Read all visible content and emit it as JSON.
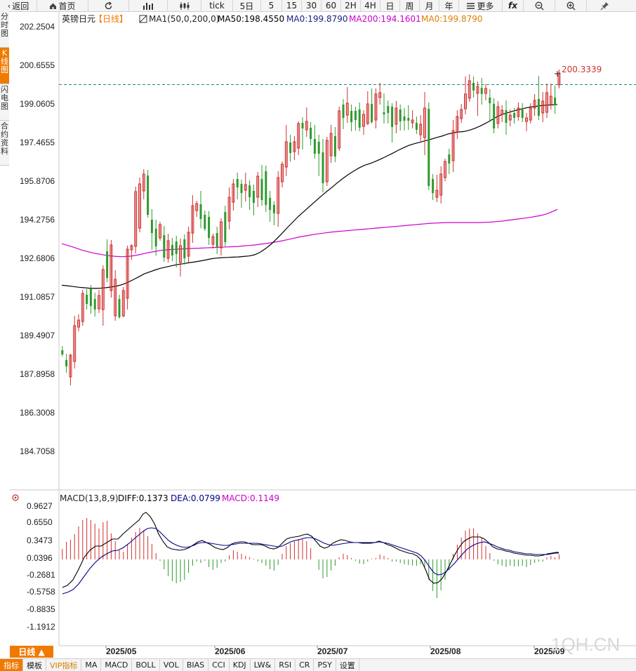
{
  "toolbar": {
    "back_label": "返回",
    "home_label": "首页",
    "tick_label": "tick",
    "day5_label": "5日",
    "m5_label": "5",
    "m15_label": "15",
    "m30_label": "30",
    "m60_label": "60",
    "h2_label": "2H",
    "h4_label": "4H",
    "day_label": "日",
    "week_label": "周",
    "month_label": "月",
    "year_label": "年",
    "more_label": "更多",
    "fx_label": "fx"
  },
  "side_tabs": [
    "分时图",
    "K线图",
    "闪电图",
    "合约资料"
  ],
  "header": {
    "name": "英镑日元",
    "period": "【日线】",
    "ma1": "MA1(50,0,200,0)",
    "ma50": "MA50:198.4550",
    "ma0": "MA0:199.8790",
    "ma200": "MA200:194.1601",
    "ma0b": "MA0:199.8790"
  },
  "price_axis": [
    "202.2504",
    "200.6555",
    "199.0605",
    "197.4655",
    "195.8706",
    "194.2756",
    "192.6806",
    "191.0857",
    "189.4907",
    "187.8958",
    "186.3008",
    "184.7058"
  ],
  "last_price": "200.3339",
  "macd": {
    "title": "MACD(13,8,9)",
    "diff": "DIFF:0.1373",
    "dea": "DEA:0.0799",
    "macd": "MACD:0.1149",
    "axis": [
      "0.9627",
      "0.6550",
      "0.3473",
      "0.0396",
      "-0.2681",
      "-0.5758",
      "-0.8835",
      "-1.1912"
    ]
  },
  "date_axis": [
    "2025/05",
    "2025/06",
    "2025/07",
    "2025/08",
    "2025/09"
  ],
  "watermark": "1QH.CN",
  "period_button": "日线 ▲",
  "bottom_tabs": [
    "指标",
    "模板",
    "VIP指标",
    "MA",
    "MACD",
    "BOLL",
    "VOL",
    "BIAS",
    "CCI",
    "KDJ",
    "LW&",
    "RSI",
    "CR",
    "PSY",
    "设置"
  ],
  "colors": {
    "up": "#d03030",
    "down": "#2e9a2e",
    "ma50": "#000000",
    "ma200": "#cc00cc",
    "accent": "#f07a00",
    "dea": "#00008b",
    "last_price": "#d03030"
  },
  "chart_data": {
    "type": "candlestick",
    "price_range": [
      184.7058,
      202.2504
    ],
    "last_close": 200.3339,
    "ma50": [
      191.05,
      191.03,
      191.0,
      190.97,
      190.95,
      190.93,
      190.92,
      190.93,
      190.95,
      190.98,
      191.02,
      191.08,
      191.17,
      191.28,
      191.4,
      191.52,
      191.6,
      191.68,
      191.75,
      191.8,
      191.85,
      191.9,
      191.93,
      191.97,
      192.0,
      192.04,
      192.08,
      192.13,
      192.16,
      192.18,
      192.19,
      192.2,
      192.21,
      192.23,
      192.25,
      192.3,
      192.4,
      192.55,
      192.73,
      192.95,
      193.18,
      193.42,
      193.65,
      193.88,
      194.08,
      194.28,
      194.48,
      194.68,
      194.87,
      195.05,
      195.24,
      195.42,
      195.58,
      195.73,
      195.86,
      195.97,
      196.04,
      196.13,
      196.23,
      196.34,
      196.45,
      196.57,
      196.68,
      196.78,
      196.85,
      196.91,
      196.97,
      197.03,
      197.1,
      197.16,
      197.24,
      197.29,
      197.33,
      197.35,
      197.4,
      197.48,
      197.58,
      197.69,
      197.82,
      197.95,
      198.05,
      198.12,
      198.19,
      198.25,
      198.3,
      198.35,
      198.38,
      198.41,
      198.43,
      198.44,
      198.46
    ],
    "ma200": [
      192.75,
      192.69,
      192.62,
      192.54,
      192.47,
      192.41,
      192.36,
      192.32,
      192.28,
      192.25,
      192.23,
      192.22,
      192.23,
      192.26,
      192.3,
      192.35,
      192.4,
      192.44,
      192.48,
      192.5,
      192.52,
      192.53,
      192.54,
      192.55,
      192.56,
      192.57,
      192.58,
      192.59,
      192.6,
      192.61,
      192.62,
      192.63,
      192.64,
      192.66,
      192.68,
      192.7,
      192.73,
      192.76,
      192.79,
      192.83,
      192.87,
      192.92,
      192.97,
      193.02,
      193.06,
      193.1,
      193.14,
      193.17,
      193.2,
      193.23,
      193.25,
      193.27,
      193.29,
      193.31,
      193.33,
      193.35,
      193.37,
      193.39,
      193.41,
      193.43,
      193.45,
      193.47,
      193.49,
      193.51,
      193.53,
      193.55,
      193.57,
      193.59,
      193.6,
      193.61,
      193.62,
      193.62,
      193.62,
      193.62,
      193.62,
      193.62,
      193.62,
      193.63,
      193.64,
      193.66,
      193.68,
      193.71,
      193.74,
      193.77,
      193.8,
      193.83,
      193.87,
      193.91,
      193.97,
      194.06,
      194.16
    ]
  }
}
